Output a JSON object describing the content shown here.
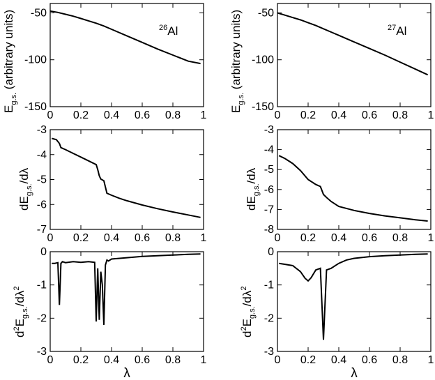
{
  "chart_data": [
    {
      "id": "p1",
      "type": "line",
      "annotation": {
        "mass": "26",
        "element": "Al"
      },
      "ylabel": {
        "base": "E",
        "sub": "g.s.",
        "suffix": " (arbitrary units)"
      },
      "xlim": [
        0,
        1
      ],
      "ylim": [
        -150,
        -40
      ],
      "xticks": [
        0,
        0.2,
        0.4,
        0.6,
        0.8,
        1
      ],
      "xticklabels": [
        "0",
        "0.2",
        "0.4",
        "0.6",
        "0.8",
        "1"
      ],
      "yticks": [
        -150,
        -100,
        -50
      ],
      "yticklabels": [
        "-150",
        "-100",
        "-50"
      ],
      "series": [
        {
          "name": "E_gs",
          "x": [
            0,
            0.05,
            0.1,
            0.15,
            0.2,
            0.25,
            0.3,
            0.35,
            0.4,
            0.5,
            0.6,
            0.7,
            0.8,
            0.9,
            0.98
          ],
          "y": [
            -48,
            -49.5,
            -51.5,
            -53.5,
            -56,
            -58.5,
            -61,
            -64,
            -67.5,
            -74.5,
            -81.5,
            -88.5,
            -95,
            -101.5,
            -104
          ]
        }
      ]
    },
    {
      "id": "p2",
      "type": "line",
      "annotation": {
        "mass": "27",
        "element": "Al"
      },
      "ylabel": {
        "base": "E",
        "sub": "g.s.",
        "suffix": " (arbitrary units)"
      },
      "xlim": [
        0,
        1
      ],
      "ylim": [
        -150,
        -40
      ],
      "xticks": [
        0,
        0.2,
        0.4,
        0.6,
        0.8,
        1
      ],
      "xticklabels": [
        "0",
        "0.2",
        "0.4",
        "0.6",
        "0.8",
        "1"
      ],
      "yticks": [
        -150,
        -100,
        -50
      ],
      "yticklabels": [
        "-150",
        "-100",
        "-50"
      ],
      "series": [
        {
          "name": "E_gs",
          "x": [
            0,
            0.05,
            0.1,
            0.15,
            0.2,
            0.25,
            0.3,
            0.35,
            0.4,
            0.5,
            0.6,
            0.7,
            0.8,
            0.9,
            0.98
          ],
          "y": [
            -50,
            -52.5,
            -55,
            -57.5,
            -60.5,
            -63.5,
            -67,
            -70.5,
            -74,
            -81,
            -88,
            -95,
            -102.5,
            -110,
            -116
          ]
        }
      ]
    },
    {
      "id": "p3",
      "type": "line",
      "ylabel": {
        "prefix": "dE",
        "sub": "g.s.",
        "suffix": "/dλ"
      },
      "xlim": [
        0,
        1
      ],
      "ylim": [
        -7,
        -3
      ],
      "xticks": [
        0,
        0.2,
        0.4,
        0.6,
        0.8,
        1
      ],
      "xticklabels": [
        "0",
        "0.2",
        "0.4",
        "0.6",
        "0.8",
        "1"
      ],
      "yticks": [
        -7,
        -6,
        -5,
        -4,
        -3
      ],
      "yticklabels": [
        "-7",
        "-6",
        "-5",
        "-4",
        "-3"
      ],
      "series": [
        {
          "name": "dE/dlambda",
          "x": [
            0.01,
            0.04,
            0.06,
            0.07,
            0.1,
            0.15,
            0.2,
            0.25,
            0.3,
            0.31,
            0.32,
            0.33,
            0.35,
            0.36,
            0.37,
            0.4,
            0.45,
            0.5,
            0.6,
            0.7,
            0.8,
            0.9,
            0.98
          ],
          "y": [
            -3.35,
            -3.4,
            -3.55,
            -3.72,
            -3.8,
            -3.95,
            -4.1,
            -4.25,
            -4.4,
            -4.6,
            -4.85,
            -4.98,
            -5.05,
            -5.3,
            -5.55,
            -5.63,
            -5.75,
            -5.85,
            -6.02,
            -6.17,
            -6.3,
            -6.42,
            -6.52
          ]
        }
      ]
    },
    {
      "id": "p4",
      "type": "line",
      "ylabel": {
        "prefix": "dE",
        "sub": "g.s.",
        "suffix": "/dλ"
      },
      "xlim": [
        0,
        1
      ],
      "ylim": [
        -8,
        -3
      ],
      "xticks": [
        0,
        0.2,
        0.4,
        0.6,
        0.8,
        1
      ],
      "xticklabels": [
        "0",
        "0.2",
        "0.4",
        "0.6",
        "0.8",
        "1"
      ],
      "yticks": [
        -8,
        -7,
        -6,
        -5,
        -4,
        -3
      ],
      "yticklabels": [
        "-8",
        "-7",
        "-6",
        "-5",
        "-4",
        "-3"
      ],
      "series": [
        {
          "name": "dE/dlambda",
          "x": [
            0.01,
            0.05,
            0.1,
            0.15,
            0.2,
            0.25,
            0.28,
            0.3,
            0.32,
            0.35,
            0.4,
            0.5,
            0.6,
            0.7,
            0.8,
            0.9,
            0.98
          ],
          "y": [
            -4.3,
            -4.45,
            -4.7,
            -5.05,
            -5.5,
            -5.75,
            -5.85,
            -6.25,
            -6.4,
            -6.6,
            -6.85,
            -7.05,
            -7.2,
            -7.32,
            -7.42,
            -7.52,
            -7.58
          ]
        }
      ]
    },
    {
      "id": "p5",
      "type": "line",
      "ylabel": {
        "prefix": "d",
        "sup1": "2",
        "mid": "E",
        "sub": "g.s.",
        "suffix": "/dλ",
        "sup2": "2"
      },
      "xlim": [
        0,
        1
      ],
      "ylim": [
        -3,
        0
      ],
      "xticks": [
        0,
        0.2,
        0.4,
        0.6,
        0.8,
        1
      ],
      "xticklabels": [
        "0",
        "0.2",
        "0.4",
        "0.6",
        "0.8",
        "1"
      ],
      "yticks": [
        -3,
        -2,
        -1,
        0
      ],
      "yticklabels": [
        "-3",
        "-2",
        "-1",
        "0"
      ],
      "xlabel": "λ",
      "series": [
        {
          "name": "d2E/dlambda2",
          "x": [
            0.01,
            0.03,
            0.05,
            0.06,
            0.07,
            0.08,
            0.1,
            0.15,
            0.2,
            0.25,
            0.29,
            0.3,
            0.31,
            0.32,
            0.33,
            0.34,
            0.35,
            0.36,
            0.37,
            0.38,
            0.4,
            0.5,
            0.6,
            0.7,
            0.8,
            0.9,
            0.98
          ],
          "y": [
            -0.35,
            -0.35,
            -0.33,
            -1.6,
            -0.35,
            -0.3,
            -0.33,
            -0.3,
            -0.32,
            -0.3,
            -0.32,
            -2.1,
            -0.5,
            -2.05,
            -0.6,
            -1.0,
            -2.2,
            -0.4,
            -0.25,
            -0.28,
            -0.22,
            -0.18,
            -0.14,
            -0.12,
            -0.1,
            -0.08,
            -0.07
          ]
        }
      ]
    },
    {
      "id": "p6",
      "type": "line",
      "ylabel": {
        "prefix": "d",
        "sup1": "2",
        "mid": "E",
        "sub": "g.s.",
        "suffix": "/dλ",
        "sup2": "2"
      },
      "xlim": [
        0,
        1
      ],
      "ylim": [
        -3,
        0
      ],
      "xticks": [
        0,
        0.2,
        0.4,
        0.6,
        0.8,
        1
      ],
      "xticklabels": [
        "0",
        "0.2",
        "0.4",
        "0.6",
        "0.8",
        "1"
      ],
      "yticks": [
        -3,
        -2,
        -1,
        0
      ],
      "yticklabels": [
        "-3",
        "-2",
        "-1",
        "0"
      ],
      "xlabel": "λ",
      "series": [
        {
          "name": "d2E/dlambda2",
          "x": [
            0.01,
            0.05,
            0.1,
            0.15,
            0.18,
            0.2,
            0.22,
            0.25,
            0.28,
            0.3,
            0.32,
            0.35,
            0.4,
            0.45,
            0.5,
            0.6,
            0.7,
            0.8,
            0.9,
            0.98
          ],
          "y": [
            -0.35,
            -0.38,
            -0.42,
            -0.6,
            -0.8,
            -0.88,
            -0.78,
            -0.55,
            -0.5,
            -2.65,
            -0.55,
            -0.5,
            -0.35,
            -0.25,
            -0.2,
            -0.15,
            -0.12,
            -0.1,
            -0.08,
            -0.07
          ]
        }
      ]
    }
  ]
}
